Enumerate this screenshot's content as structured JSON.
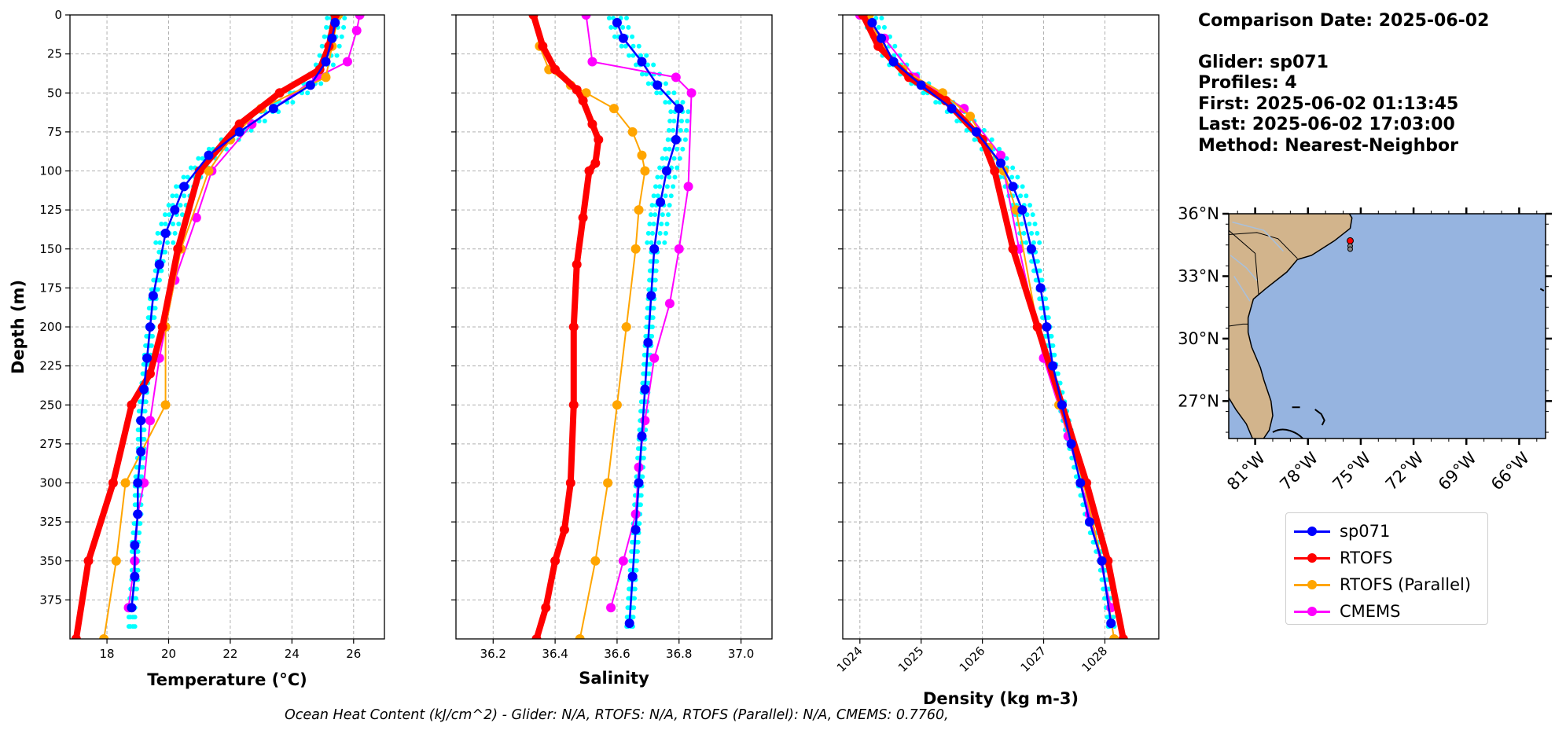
{
  "info": {
    "comparison_date": "Comparison Date: 2025-06-02",
    "glider": "Glider: sp071",
    "profiles": "Profiles: 4",
    "first": "First: 2025-06-02 01:13:45",
    "last": "Last: 2025-06-02 17:03:00",
    "method": "Method: Nearest-Neighbor"
  },
  "footer": "Ocean Heat Content (kJ/cm^2) - Glider: N/A,  RTOFS: N/A,  RTOFS (Parallel): N/A,  CMEMS: 0.7760,",
  "colors": {
    "glider": "#0000ff",
    "rtofs": "#ff0000",
    "rtofs_parallel": "#ffa500",
    "cmems": "#ff00ff",
    "glider_raw": "#00ffff",
    "ocean": "#96b4e0",
    "land": "#d2b48c"
  },
  "legend": [
    {
      "label": "sp071",
      "color": "#0000ff"
    },
    {
      "label": "RTOFS",
      "color": "#ff0000"
    },
    {
      "label": "RTOFS (Parallel)",
      "color": "#ffa500"
    },
    {
      "label": "CMEMS",
      "color": "#ff00ff"
    }
  ],
  "chart_data": [
    {
      "type": "line",
      "xlabel": "Temperature (°C)",
      "ylabel": "Depth (m)",
      "xlim": [
        16.8,
        27.0
      ],
      "ylim": [
        400,
        0
      ],
      "xticks": [
        18,
        20,
        22,
        24,
        26
      ],
      "yticks": [
        0,
        25,
        50,
        75,
        100,
        125,
        150,
        175,
        200,
        225,
        250,
        275,
        300,
        325,
        350,
        375
      ],
      "grid": true,
      "series": [
        {
          "name": "sp071",
          "x": [
            25.4,
            25.3,
            25.1,
            24.6,
            23.4,
            22.3,
            21.3,
            20.5,
            20.2,
            19.9,
            19.7,
            19.5,
            19.4,
            19.3,
            19.2,
            19.1,
            19.1,
            19.0,
            19.0,
            18.9,
            18.9,
            18.8
          ],
          "y": [
            5,
            15,
            30,
            45,
            60,
            75,
            90,
            110,
            125,
            140,
            160,
            180,
            200,
            220,
            240,
            260,
            280,
            300,
            320,
            340,
            360,
            380
          ]
        },
        {
          "name": "RTOFS",
          "x": [
            25.4,
            25.2,
            24.9,
            23.6,
            22.3,
            21.0,
            20.3,
            19.8,
            19.4,
            18.8,
            18.2,
            17.4,
            17.0
          ],
          "y": [
            0,
            20,
            35,
            50,
            70,
            100,
            150,
            200,
            230,
            250,
            300,
            350,
            400
          ]
        },
        {
          "name": "RTOFS (Parallel)",
          "x": [
            25.5,
            25.3,
            25.1,
            23.0,
            22.0,
            21.3,
            20.4,
            19.9,
            19.9,
            18.6,
            18.3,
            17.9
          ],
          "y": [
            0,
            20,
            40,
            60,
            80,
            100,
            150,
            200,
            250,
            300,
            350,
            400
          ]
        },
        {
          "name": "CMEMS",
          "x": [
            26.2,
            26.1,
            25.8,
            24.8,
            22.7,
            21.4,
            20.9,
            20.2,
            19.7,
            19.4,
            19.2,
            19.0,
            18.9,
            18.7
          ],
          "y": [
            0,
            10,
            30,
            40,
            70,
            100,
            130,
            170,
            220,
            260,
            300,
            320,
            350,
            380
          ]
        }
      ]
    },
    {
      "type": "line",
      "xlabel": "Salinity",
      "xlim": [
        36.08,
        37.1
      ],
      "ylim": [
        400,
        0
      ],
      "xticks": [
        36.2,
        36.4,
        36.6,
        36.8,
        37.0
      ],
      "grid": true,
      "series": [
        {
          "name": "sp071",
          "x": [
            36.6,
            36.62,
            36.68,
            36.73,
            36.8,
            36.79,
            36.76,
            36.74,
            36.72,
            36.71,
            36.7,
            36.69,
            36.68,
            36.67,
            36.66,
            36.65,
            36.64
          ],
          "y": [
            5,
            15,
            30,
            45,
            60,
            80,
            100,
            120,
            150,
            180,
            210,
            240,
            270,
            300,
            330,
            360,
            390
          ]
        },
        {
          "name": "RTOFS",
          "x": [
            36.33,
            36.36,
            36.4,
            36.47,
            36.49,
            36.52,
            36.54,
            36.53,
            36.51,
            36.49,
            36.47,
            36.46,
            36.46,
            36.45,
            36.43,
            36.4,
            36.37,
            36.34
          ],
          "y": [
            0,
            20,
            35,
            48,
            55,
            70,
            80,
            95,
            100,
            130,
            160,
            200,
            250,
            300,
            330,
            350,
            380,
            400
          ]
        },
        {
          "name": "RTOFS (Parallel)",
          "x": [
            36.33,
            36.35,
            36.38,
            36.45,
            36.5,
            36.59,
            36.65,
            36.68,
            36.69,
            36.67,
            36.66,
            36.63,
            36.6,
            36.57,
            36.53,
            36.48
          ],
          "y": [
            0,
            20,
            35,
            45,
            50,
            60,
            75,
            90,
            100,
            125,
            150,
            200,
            250,
            300,
            350,
            400
          ]
        },
        {
          "name": "CMEMS",
          "x": [
            36.5,
            36.52,
            36.79,
            36.84,
            36.83,
            36.8,
            36.77,
            36.72,
            36.69,
            36.67,
            36.66,
            36.62,
            36.58
          ],
          "y": [
            0,
            30,
            40,
            50,
            110,
            150,
            185,
            220,
            260,
            290,
            320,
            350,
            380
          ]
        }
      ]
    },
    {
      "type": "line",
      "xlabel": "Density (kg m-3)",
      "xlim": [
        1023.72,
        1028.88
      ],
      "ylim": [
        400,
        0
      ],
      "xticks": [
        1024,
        1025,
        1026,
        1027,
        1028
      ],
      "grid": true,
      "series": [
        {
          "name": "sp071",
          "x": [
            1024.2,
            1024.35,
            1024.55,
            1025.0,
            1025.5,
            1025.9,
            1026.3,
            1026.5,
            1026.65,
            1026.8,
            1026.95,
            1027.05,
            1027.15,
            1027.3,
            1027.45,
            1027.6,
            1027.75,
            1027.95,
            1028.1
          ],
          "y": [
            5,
            15,
            30,
            45,
            60,
            75,
            95,
            110,
            125,
            150,
            175,
            200,
            225,
            250,
            275,
            300,
            325,
            350,
            390
          ]
        },
        {
          "name": "RTOFS",
          "x": [
            1024.05,
            1024.3,
            1024.8,
            1025.4,
            1026.0,
            1026.2,
            1026.5,
            1026.9,
            1027.3,
            1027.7,
            1028.05,
            1028.3
          ],
          "y": [
            0,
            20,
            40,
            55,
            80,
            100,
            150,
            200,
            250,
            300,
            350,
            400
          ]
        },
        {
          "name": "RTOFS (Parallel)",
          "x": [
            1024.15,
            1024.35,
            1024.7,
            1025.35,
            1025.8,
            1026.1,
            1026.35,
            1026.55,
            1026.9,
            1027.25,
            1027.65,
            1027.95,
            1028.15
          ],
          "y": [
            0,
            20,
            35,
            50,
            65,
            85,
            100,
            125,
            200,
            250,
            300,
            350,
            400
          ]
        },
        {
          "name": "CMEMS",
          "x": [
            1024.0,
            1024.4,
            1024.9,
            1025.7,
            1026.3,
            1026.6,
            1027.0,
            1027.4,
            1027.75,
            1028.1
          ],
          "y": [
            0,
            15,
            40,
            60,
            90,
            150,
            220,
            270,
            320,
            380
          ]
        }
      ]
    }
  ],
  "map": {
    "lat_labels": [
      "36°N",
      "33°N",
      "30°N",
      "27°N"
    ],
    "lon_labels": [
      "81°W",
      "78°W",
      "75°W",
      "72°W",
      "69°W",
      "66°W"
    ],
    "lat_ticks": [
      36,
      33,
      30,
      27
    ],
    "lon_ticks": [
      -81,
      -78,
      -75,
      -72,
      -69,
      -66
    ],
    "lon_range": [
      -82.5,
      -64.5
    ],
    "lat_range": [
      25.2,
      36.0
    ],
    "glider_position": {
      "lon": -75.6,
      "lat": 34.7
    }
  }
}
